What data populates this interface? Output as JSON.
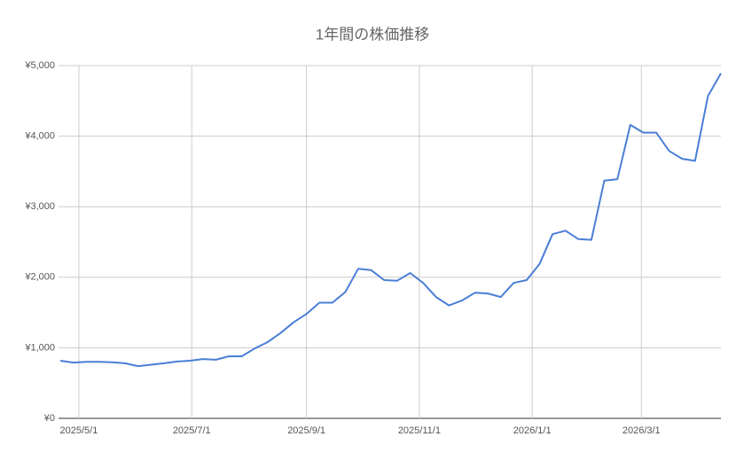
{
  "chart_data": {
    "type": "line",
    "title": "1年間の株価推移",
    "x": [
      "2025/4/21",
      "2025/4/28",
      "2025/5/5",
      "2025/5/12",
      "2025/5/19",
      "2025/5/26",
      "2025/6/2",
      "2025/6/9",
      "2025/6/16",
      "2025/6/23",
      "2025/6/30",
      "2025/7/7",
      "2025/7/14",
      "2025/7/21",
      "2025/7/28",
      "2025/8/4",
      "2025/8/11",
      "2025/8/18",
      "2025/8/25",
      "2025/9/1",
      "2025/9/8",
      "2025/9/15",
      "2025/9/22",
      "2025/9/29",
      "2025/10/6",
      "2025/10/13",
      "2025/10/20",
      "2025/10/27",
      "2025/11/3",
      "2025/11/10",
      "2025/11/17",
      "2025/11/24",
      "2025/12/1",
      "2025/12/8",
      "2025/12/15",
      "2025/12/22",
      "2025/12/29",
      "2026/1/5",
      "2026/1/12",
      "2026/1/19",
      "2026/1/26",
      "2026/2/2",
      "2026/2/9",
      "2026/2/16",
      "2026/2/23",
      "2026/3/2",
      "2026/3/9",
      "2026/3/16",
      "2026/3/23",
      "2026/3/30",
      "2026/4/6",
      "2026/4/13"
    ],
    "series": [
      {
        "color": "#4a7fd6",
        "values": [
          817,
          790,
          800,
          800,
          795,
          780,
          740,
          760,
          780,
          805,
          817,
          840,
          830,
          880,
          880,
          990,
          1080,
          1210,
          1360,
          1480,
          1640,
          1640,
          1790,
          2120,
          2100,
          1960,
          1950,
          2060,
          1920,
          1720,
          1600,
          1670,
          1780,
          1770,
          1720,
          1920,
          1960,
          2190,
          2610,
          2660,
          2540,
          2530,
          3370,
          3390,
          4160,
          4050,
          4050,
          3790,
          3680,
          3650,
          4570,
          4890
        ]
      }
    ],
    "xlim": [
      "2025/4/20",
      "2026/4/13"
    ],
    "xticks": [
      "2025/5/1",
      "2025/7/1",
      "2025/9/1",
      "2025/11/1",
      "2026/1/1",
      "2026/3/1"
    ],
    "ylim": [
      0,
      5000
    ],
    "yticks": [
      {
        "value": 0,
        "label": "¥0"
      },
      {
        "value": 1000,
        "label": "¥1,000"
      },
      {
        "value": 2000,
        "label": "¥2,000"
      },
      {
        "value": 3000,
        "label": "¥3,000"
      },
      {
        "value": 4000,
        "label": "¥4,000"
      },
      {
        "value": 5000,
        "label": "¥5,000"
      }
    ],
    "grid": true
  }
}
